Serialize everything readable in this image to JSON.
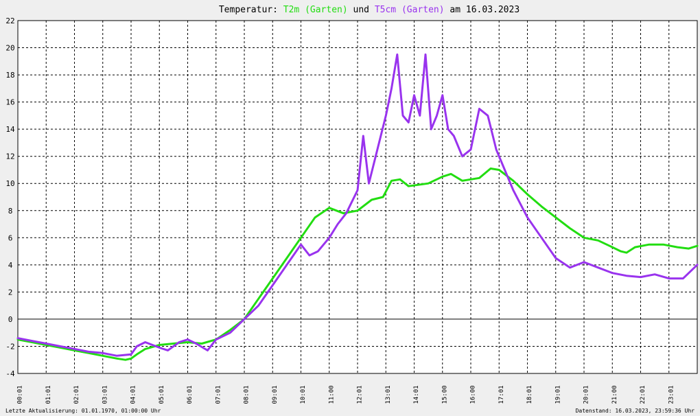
{
  "title": {
    "prefix": "Temperatur: ",
    "series1": "T2m (Garten)",
    "mid": " und ",
    "series2": "T5cm (Garten)",
    "suffix": " am 16.03.2023"
  },
  "footer": {
    "left": "Letzte Aktualisierung: 01.01.1970, 01:00:00 Uhr",
    "right": "Datenstand: 16.03.2023, 23:59:36 Uhr"
  },
  "chart_data": {
    "type": "line",
    "ylim": [
      -4,
      22
    ],
    "yticks": [
      22,
      20,
      18,
      16,
      14,
      12,
      10,
      8,
      6,
      4,
      2,
      0,
      -2,
      -4
    ],
    "xlim": [
      0,
      24
    ],
    "xticks": [
      {
        "x": 0,
        "label": "00:01"
      },
      {
        "x": 1,
        "label": "01:01"
      },
      {
        "x": 2,
        "label": "02:01"
      },
      {
        "x": 3,
        "label": "03:01"
      },
      {
        "x": 4,
        "label": "04:01"
      },
      {
        "x": 5,
        "label": "05:01"
      },
      {
        "x": 6,
        "label": "06:01"
      },
      {
        "x": 7,
        "label": "07:01"
      },
      {
        "x": 8,
        "label": "08:01"
      },
      {
        "x": 9,
        "label": "09:01"
      },
      {
        "x": 10,
        "label": "10:01"
      },
      {
        "x": 11,
        "label": "11:00"
      },
      {
        "x": 12,
        "label": "12:01"
      },
      {
        "x": 13,
        "label": "13:01"
      },
      {
        "x": 14,
        "label": "14:01"
      },
      {
        "x": 15,
        "label": "15:00"
      },
      {
        "x": 16,
        "label": "16:00"
      },
      {
        "x": 17,
        "label": "17:01"
      },
      {
        "x": 18,
        "label": "18:01"
      },
      {
        "x": 19,
        "label": "19:01"
      },
      {
        "x": 20,
        "label": "20:01"
      },
      {
        "x": 21,
        "label": "21:00"
      },
      {
        "x": 22,
        "label": "22:01"
      },
      {
        "x": 23,
        "label": "23:01"
      }
    ],
    "grid": true,
    "series": [
      {
        "name": "T2m (Garten)",
        "color": "#22dd11",
        "points": [
          [
            0,
            -1.5
          ],
          [
            0.5,
            -1.7
          ],
          [
            1,
            -1.9
          ],
          [
            1.5,
            -2.1
          ],
          [
            2,
            -2.3
          ],
          [
            2.5,
            -2.5
          ],
          [
            3,
            -2.7
          ],
          [
            3.5,
            -2.9
          ],
          [
            3.8,
            -3.0
          ],
          [
            4,
            -2.9
          ],
          [
            4.2,
            -2.6
          ],
          [
            4.5,
            -2.2
          ],
          [
            5,
            -1.9
          ],
          [
            5.5,
            -1.8
          ],
          [
            6,
            -1.7
          ],
          [
            6.5,
            -1.8
          ],
          [
            7,
            -1.5
          ],
          [
            7.5,
            -0.8
          ],
          [
            8,
            0
          ],
          [
            8.5,
            1.5
          ],
          [
            9,
            3.0
          ],
          [
            9.5,
            4.5
          ],
          [
            10,
            6.0
          ],
          [
            10.5,
            7.5
          ],
          [
            11,
            8.2
          ],
          [
            11.5,
            7.8
          ],
          [
            12,
            8.0
          ],
          [
            12.5,
            8.8
          ],
          [
            12.9,
            9.0
          ],
          [
            13.2,
            10.2
          ],
          [
            13.5,
            10.3
          ],
          [
            13.8,
            9.8
          ],
          [
            14.5,
            10.0
          ],
          [
            15,
            10.5
          ],
          [
            15.3,
            10.7
          ],
          [
            15.7,
            10.2
          ],
          [
            16.3,
            10.4
          ],
          [
            16.7,
            11.1
          ],
          [
            17,
            11.0
          ],
          [
            17.5,
            10.2
          ],
          [
            18,
            9.2
          ],
          [
            18.5,
            8.3
          ],
          [
            19,
            7.5
          ],
          [
            19.5,
            6.7
          ],
          [
            20,
            6.0
          ],
          [
            20.5,
            5.8
          ],
          [
            21,
            5.3
          ],
          [
            21.3,
            5.0
          ],
          [
            21.5,
            4.9
          ],
          [
            21.8,
            5.3
          ],
          [
            22.3,
            5.5
          ],
          [
            22.8,
            5.5
          ],
          [
            23.3,
            5.3
          ],
          [
            23.7,
            5.2
          ],
          [
            24,
            5.4
          ]
        ]
      },
      {
        "name": "T5cm (Garten)",
        "color": "#9933ee",
        "points": [
          [
            0,
            -1.4
          ],
          [
            0.5,
            -1.6
          ],
          [
            1,
            -1.8
          ],
          [
            1.5,
            -2.0
          ],
          [
            2,
            -2.2
          ],
          [
            2.5,
            -2.4
          ],
          [
            3,
            -2.5
          ],
          [
            3.5,
            -2.7
          ],
          [
            4,
            -2.6
          ],
          [
            4.2,
            -2.0
          ],
          [
            4.5,
            -1.7
          ],
          [
            5,
            -2.1
          ],
          [
            5.3,
            -2.3
          ],
          [
            5.7,
            -1.7
          ],
          [
            6,
            -1.5
          ],
          [
            6.3,
            -1.8
          ],
          [
            6.7,
            -2.3
          ],
          [
            7,
            -1.5
          ],
          [
            7.5,
            -1.0
          ],
          [
            8,
            0
          ],
          [
            8.5,
            1.0
          ],
          [
            9,
            2.5
          ],
          [
            9.5,
            4.0
          ],
          [
            10,
            5.5
          ],
          [
            10.3,
            4.7
          ],
          [
            10.6,
            5.0
          ],
          [
            11,
            6.0
          ],
          [
            11.3,
            7.0
          ],
          [
            11.6,
            7.8
          ],
          [
            12,
            9.5
          ],
          [
            12.2,
            13.5
          ],
          [
            12.4,
            10.0
          ],
          [
            12.7,
            12.5
          ],
          [
            13,
            15.0
          ],
          [
            13.2,
            17.0
          ],
          [
            13.4,
            19.5
          ],
          [
            13.6,
            15.0
          ],
          [
            13.8,
            14.5
          ],
          [
            14,
            16.5
          ],
          [
            14.2,
            15.0
          ],
          [
            14.4,
            19.5
          ],
          [
            14.6,
            14.0
          ],
          [
            14.8,
            15.0
          ],
          [
            15,
            16.5
          ],
          [
            15.2,
            14.0
          ],
          [
            15.4,
            13.5
          ],
          [
            15.7,
            12.0
          ],
          [
            16,
            12.5
          ],
          [
            16.3,
            15.5
          ],
          [
            16.6,
            15.0
          ],
          [
            16.9,
            12.5
          ],
          [
            17.2,
            11.0
          ],
          [
            17.5,
            9.5
          ],
          [
            18,
            7.5
          ],
          [
            18.5,
            6.0
          ],
          [
            19,
            4.5
          ],
          [
            19.5,
            3.8
          ],
          [
            20,
            4.2
          ],
          [
            20.5,
            3.8
          ],
          [
            21,
            3.4
          ],
          [
            21.5,
            3.2
          ],
          [
            22,
            3.1
          ],
          [
            22.5,
            3.3
          ],
          [
            23,
            3.0
          ],
          [
            23.5,
            3.0
          ],
          [
            24,
            4.0
          ]
        ]
      }
    ]
  }
}
